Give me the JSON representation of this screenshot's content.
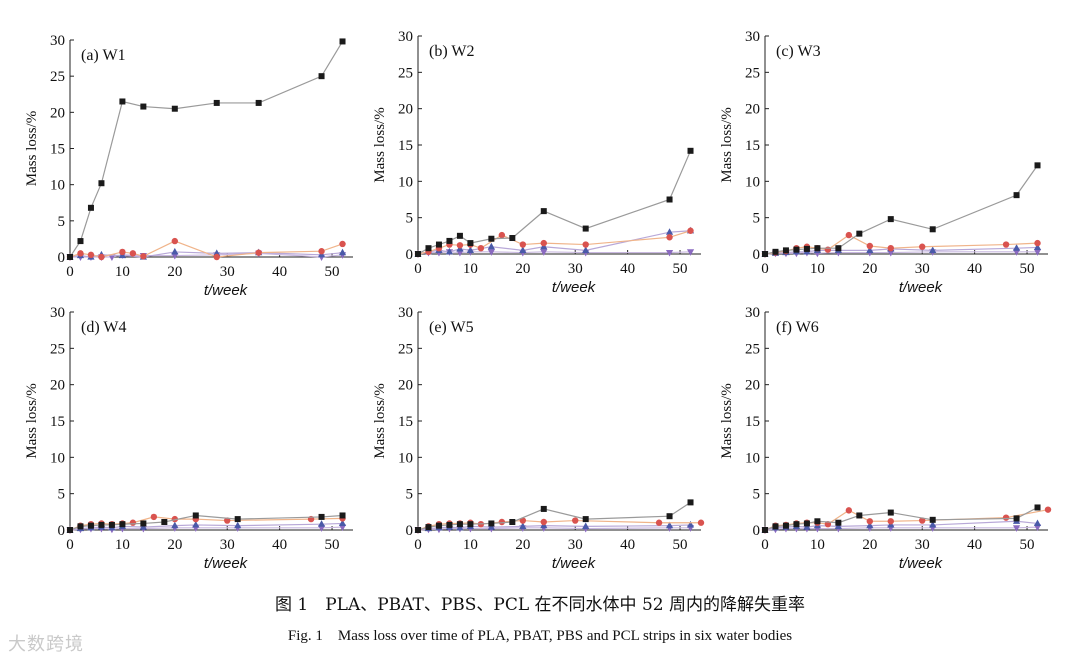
{
  "caption_cn": "图 1　PLA、PBAT、PBS、PCL 在不同水体中 52 周内的降解失重率",
  "caption_en": "Fig. 1　Mass loss over time of PLA, PBAT, PBS and PCL strips in six water bodies",
  "watermark": "大数跨境",
  "colors": {
    "s1": "#1a1a1a",
    "s1_line": "#9a9a9a",
    "s2": "#d9534f",
    "s2_line": "#f0b48a",
    "s3": "#4a5aa8",
    "s3_line": "#b8a8d8",
    "s4": "#8a6ac0",
    "s4_line": "#c9b8e0"
  },
  "chart_data": [
    {
      "type": "line",
      "title": "(a) W1",
      "xlabel": "t/week",
      "ylabel": "Mass loss/%",
      "xlim": [
        0,
        54
      ],
      "ylim": [
        0,
        30
      ],
      "xticks": [
        0,
        10,
        20,
        30,
        40,
        50
      ],
      "yticks": [
        0,
        5,
        10,
        15,
        20,
        25,
        30
      ],
      "series": [
        {
          "marker": "square",
          "x": [
            0,
            2,
            4,
            6,
            10,
            14,
            20,
            28,
            36,
            48,
            52
          ],
          "y": [
            0,
            2.2,
            6.8,
            10.2,
            21.5,
            20.8,
            20.5,
            21.3,
            21.3,
            25,
            29.8
          ]
        },
        {
          "marker": "circle",
          "x": [
            0,
            2,
            4,
            6,
            10,
            12,
            14,
            20,
            28,
            36,
            48,
            52
          ],
          "y": [
            0,
            0.5,
            0.3,
            0,
            0.7,
            0.5,
            0.1,
            2.2,
            0,
            0.6,
            0.8,
            1.8
          ]
        },
        {
          "marker": "triangle",
          "x": [
            0,
            2,
            4,
            6,
            10,
            14,
            20,
            28,
            36,
            48,
            52
          ],
          "y": [
            0,
            0.2,
            0,
            0.3,
            0.2,
            0,
            0.7,
            0.5,
            0.6,
            0.3,
            0.6
          ]
        },
        {
          "marker": "triangle-down",
          "x": [
            0,
            2,
            4,
            6,
            8,
            10,
            14,
            20,
            28,
            36,
            48,
            52
          ],
          "y": [
            0,
            0,
            0,
            0,
            0,
            0.3,
            0.2,
            0.2,
            0.3,
            0.5,
            0,
            0.3
          ]
        }
      ]
    },
    {
      "type": "line",
      "title": "(b) W2",
      "xlabel": "t/week",
      "ylabel": "Mass loss/%",
      "xlim": [
        0,
        54
      ],
      "ylim": [
        0,
        30
      ],
      "xticks": [
        0,
        10,
        20,
        30,
        40,
        50
      ],
      "yticks": [
        0,
        5,
        10,
        15,
        20,
        25,
        30
      ],
      "series": [
        {
          "marker": "square",
          "x": [
            0,
            2,
            4,
            6,
            8,
            10,
            14,
            18,
            24,
            32,
            48,
            52
          ],
          "y": [
            0,
            0.8,
            1.3,
            1.8,
            2.5,
            1.5,
            2.1,
            2.2,
            5.9,
            3.5,
            7.5,
            14.2
          ]
        },
        {
          "marker": "circle",
          "x": [
            0,
            2,
            4,
            6,
            8,
            10,
            12,
            16,
            20,
            24,
            32,
            48,
            52
          ],
          "y": [
            0,
            0.3,
            0.8,
            1.3,
            1.2,
            1.3,
            0.8,
            2.6,
            1.3,
            1.5,
            1.3,
            2.3,
            3.2
          ]
        },
        {
          "marker": "triangle",
          "x": [
            0,
            2,
            4,
            6,
            8,
            10,
            14,
            20,
            24,
            32,
            48,
            52
          ],
          "y": [
            0,
            0.3,
            0.5,
            0.3,
            0.7,
            0.5,
            1.0,
            0.5,
            1.0,
            0.5,
            3.0,
            3.2
          ]
        },
        {
          "marker": "triangle-down",
          "x": [
            0,
            2,
            4,
            6,
            8,
            10,
            14,
            20,
            24,
            32,
            48,
            52
          ],
          "y": [
            0,
            0.2,
            0.2,
            0.3,
            0.2,
            0.3,
            0.3,
            0.2,
            0.3,
            0.2,
            0.2,
            0.3
          ]
        }
      ]
    },
    {
      "type": "line",
      "title": "(c) W3",
      "xlabel": "t/week",
      "ylabel": "Mass loss/%",
      "xlim": [
        0,
        54
      ],
      "ylim": [
        0,
        30
      ],
      "xticks": [
        0,
        10,
        20,
        30,
        40,
        50
      ],
      "yticks": [
        0,
        5,
        10,
        15,
        20,
        25,
        30
      ],
      "series": [
        {
          "marker": "square",
          "x": [
            0,
            2,
            4,
            6,
            8,
            10,
            14,
            18,
            24,
            32,
            48,
            52
          ],
          "y": [
            0,
            0.3,
            0.5,
            0.6,
            0.7,
            0.8,
            0.8,
            2.8,
            4.8,
            3.4,
            8.1,
            12.2
          ]
        },
        {
          "marker": "circle",
          "x": [
            0,
            2,
            4,
            6,
            8,
            10,
            12,
            16,
            20,
            24,
            30,
            46,
            52
          ],
          "y": [
            0,
            0.2,
            0.4,
            0.8,
            1.0,
            0.8,
            0.6,
            2.6,
            1.1,
            0.8,
            1.0,
            1.3,
            1.5
          ]
        },
        {
          "marker": "triangle",
          "x": [
            0,
            2,
            4,
            6,
            8,
            10,
            14,
            20,
            24,
            32,
            48,
            52
          ],
          "y": [
            0,
            0.1,
            0.2,
            0.3,
            0.3,
            0.5,
            0.5,
            0.5,
            0.7,
            0.5,
            0.8,
            0.9
          ]
        },
        {
          "marker": "triangle-down",
          "x": [
            0,
            2,
            4,
            6,
            8,
            10,
            14,
            20,
            24,
            32,
            48,
            52
          ],
          "y": [
            0,
            0.1,
            0.1,
            0.1,
            0.2,
            0.1,
            0.2,
            0.2,
            0.2,
            0.3,
            0.3,
            0.3
          ]
        }
      ]
    },
    {
      "type": "line",
      "title": "(d) W4",
      "xlabel": "t/week",
      "ylabel": "Mass loss/%",
      "xlim": [
        0,
        54
      ],
      "ylim": [
        0,
        30
      ],
      "xticks": [
        0,
        10,
        20,
        30,
        40,
        50
      ],
      "yticks": [
        0,
        5,
        10,
        15,
        20,
        25,
        30
      ],
      "series": [
        {
          "marker": "square",
          "x": [
            0,
            2,
            4,
            6,
            8,
            10,
            14,
            18,
            24,
            32,
            48,
            52
          ],
          "y": [
            0,
            0.5,
            0.6,
            0.7,
            0.7,
            0.8,
            0.9,
            1.1,
            2.0,
            1.5,
            1.8,
            2.0
          ]
        },
        {
          "marker": "circle",
          "x": [
            0,
            2,
            4,
            6,
            8,
            10,
            12,
            16,
            20,
            24,
            30,
            46,
            52
          ],
          "y": [
            0,
            0.6,
            0.8,
            0.9,
            0.8,
            0.9,
            1.0,
            1.8,
            1.5,
            1.5,
            1.3,
            1.5,
            1.6
          ]
        },
        {
          "marker": "triangle",
          "x": [
            0,
            2,
            4,
            6,
            8,
            10,
            14,
            20,
            24,
            32,
            48,
            52
          ],
          "y": [
            0,
            0.2,
            0.3,
            0.4,
            0.3,
            0.5,
            0.4,
            0.6,
            0.7,
            0.6,
            0.8,
            0.9
          ]
        },
        {
          "marker": "triangle-down",
          "x": [
            0,
            2,
            4,
            6,
            8,
            10,
            14,
            20,
            24,
            32,
            48,
            52
          ],
          "y": [
            0,
            0.1,
            0.2,
            0.2,
            0.1,
            0.2,
            0.2,
            0.3,
            0.3,
            0.3,
            0.3,
            0.4
          ]
        }
      ]
    },
    {
      "type": "line",
      "title": "(e) W5",
      "xlabel": "t/week",
      "ylabel": "Mass loss/%",
      "xlim": [
        0,
        54
      ],
      "ylim": [
        0,
        30
      ],
      "xticks": [
        0,
        10,
        20,
        30,
        40,
        50
      ],
      "yticks": [
        0,
        5,
        10,
        15,
        20,
        25,
        30
      ],
      "series": [
        {
          "marker": "square",
          "x": [
            0,
            2,
            4,
            6,
            8,
            10,
            14,
            18,
            24,
            32,
            48,
            52
          ],
          "y": [
            0,
            0.4,
            0.6,
            0.7,
            0.8,
            0.8,
            0.9,
            1.1,
            2.9,
            1.5,
            1.9,
            3.8
          ]
        },
        {
          "marker": "circle",
          "x": [
            0,
            2,
            4,
            6,
            8,
            10,
            12,
            16,
            20,
            24,
            30,
            46,
            54
          ],
          "y": [
            0,
            0.5,
            0.8,
            0.9,
            0.9,
            1.0,
            0.8,
            1.1,
            1.3,
            1.1,
            1.3,
            1.0,
            1.0
          ]
        },
        {
          "marker": "triangle",
          "x": [
            0,
            2,
            4,
            6,
            8,
            10,
            14,
            20,
            24,
            32,
            48,
            52
          ],
          "y": [
            0,
            0.2,
            0.3,
            0.4,
            0.3,
            0.5,
            0.4,
            0.5,
            0.6,
            0.5,
            0.6,
            0.7
          ]
        },
        {
          "marker": "triangle-down",
          "x": [
            0,
            2,
            4,
            6,
            8,
            10,
            14,
            20,
            24,
            32,
            48,
            52
          ],
          "y": [
            0,
            0.1,
            0.1,
            0.2,
            0.2,
            0.2,
            0.2,
            0.3,
            0.3,
            0.2,
            0.3,
            0.3
          ]
        }
      ]
    },
    {
      "type": "line",
      "title": "(f) W6",
      "xlabel": "t/week",
      "ylabel": "Mass loss/%",
      "xlim": [
        0,
        54
      ],
      "ylim": [
        0,
        30
      ],
      "xticks": [
        0,
        10,
        20,
        30,
        40,
        50
      ],
      "yticks": [
        0,
        5,
        10,
        15,
        20,
        25,
        30
      ],
      "series": [
        {
          "marker": "square",
          "x": [
            0,
            2,
            4,
            6,
            8,
            10,
            14,
            18,
            24,
            32,
            48,
            52
          ],
          "y": [
            0,
            0.5,
            0.6,
            0.8,
            0.9,
            1.2,
            1.0,
            2.0,
            2.4,
            1.4,
            1.6,
            3.1
          ]
        },
        {
          "marker": "circle",
          "x": [
            0,
            2,
            4,
            6,
            8,
            10,
            12,
            16,
            20,
            24,
            30,
            46,
            54
          ],
          "y": [
            0,
            0.6,
            0.7,
            0.9,
            1.0,
            1.0,
            0.8,
            2.7,
            1.2,
            1.2,
            1.3,
            1.7,
            2.8
          ]
        },
        {
          "marker": "triangle",
          "x": [
            0,
            2,
            4,
            6,
            8,
            10,
            14,
            20,
            24,
            32,
            48,
            52
          ],
          "y": [
            0,
            0.3,
            0.4,
            0.5,
            0.4,
            0.6,
            0.5,
            0.6,
            0.7,
            0.7,
            1.2,
            0.9
          ]
        },
        {
          "marker": "triangle-down",
          "x": [
            0,
            2,
            4,
            6,
            8,
            10,
            14,
            20,
            24,
            32,
            48,
            52
          ],
          "y": [
            0,
            0.1,
            0.2,
            0.2,
            0.2,
            0.2,
            0.2,
            0.3,
            0.3,
            0.3,
            0.3,
            0.4
          ]
        }
      ]
    }
  ]
}
